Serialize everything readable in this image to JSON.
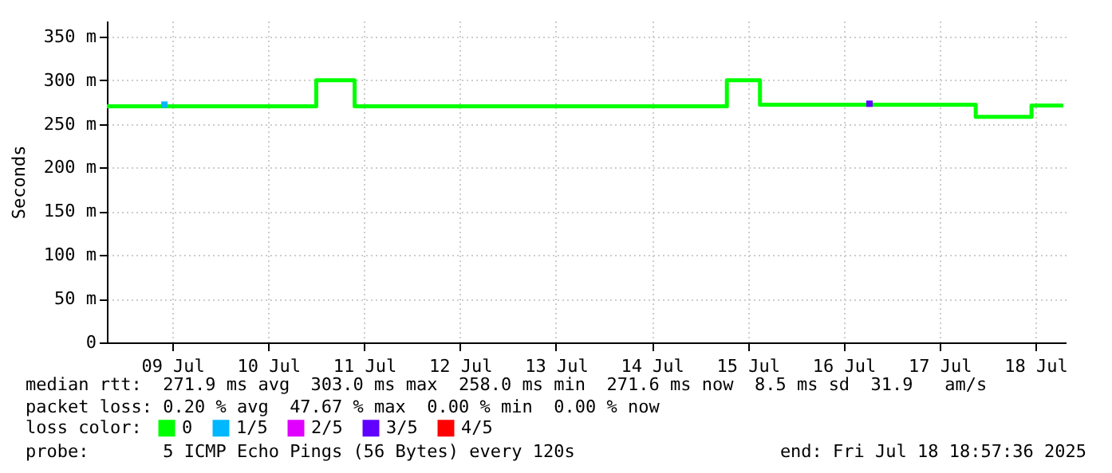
{
  "chart_data": {
    "type": "step",
    "ylabel": "Seconds",
    "legend_title": "loss color:",
    "legend": "bottom",
    "grid": true,
    "xlim": [
      "2025-07-08T19:36",
      "2025-07-18T19:36"
    ],
    "xticks": [
      {
        "value": "2025-07-09T12:00",
        "label": "09 Jul"
      },
      {
        "value": "2025-07-10T12:00",
        "label": "10 Jul"
      },
      {
        "value": "2025-07-11T12:00",
        "label": "11 Jul"
      },
      {
        "value": "2025-07-12T12:00",
        "label": "12 Jul"
      },
      {
        "value": "2025-07-13T12:00",
        "label": "13 Jul"
      },
      {
        "value": "2025-07-14T12:00",
        "label": "14 Jul"
      },
      {
        "value": "2025-07-15T12:00",
        "label": "15 Jul"
      },
      {
        "value": "2025-07-16T12:00",
        "label": "16 Jul"
      },
      {
        "value": "2025-07-17T12:00",
        "label": "17 Jul"
      },
      {
        "value": "2025-07-18T12:00",
        "label": "18 Jul"
      }
    ],
    "ylim": [
      0,
      368
    ],
    "yticks": [
      0,
      {
        "value": 50,
        "label": "50 m"
      },
      {
        "value": 100,
        "label": "100 m"
      },
      {
        "value": 150,
        "label": "150 m"
      },
      {
        "value": 200,
        "label": "200 m"
      },
      {
        "value": 250,
        "label": "250 m"
      },
      {
        "value": 300,
        "label": "300 m"
      },
      {
        "value": 350,
        "label": "350 m"
      }
    ],
    "series": [
      {
        "name": "0",
        "color": "#00ff00",
        "x": [
          "2025-07-08T19:36",
          "2025-07-11T00:00",
          "2025-07-11T09:36",
          "2025-07-15T06:47",
          "2025-07-15T15:04",
          "2025-07-17T21:04",
          "2025-07-18T11:02",
          "2025-07-18T18:57"
        ],
        "values": [
          270,
          300,
          270,
          300,
          272,
          258,
          271,
          271
        ]
      },
      {
        "name": "1/5",
        "color": "#00b8ff",
        "type": "scatter",
        "x": [
          "2025-07-09T10:00"
        ],
        "values": [
          272
        ]
      },
      {
        "name": "2/5",
        "color": "#e000ff",
        "type": "scatter"
      },
      {
        "name": "3/5",
        "color": "#6000ff",
        "type": "scatter",
        "x": [
          "2025-07-16T18:29"
        ],
        "values": [
          273
        ]
      },
      {
        "name": "4/5",
        "color": "#ff0000",
        "type": "scatter"
      }
    ],
    "annotations": [
      "median rtt:  271.9 ms avg  303.0 ms max  258.0 ms min  271.6 ms now  8.5 ms sd  31.9   am/s",
      "packet loss: 0.20 % avg  47.67 % max  0.00 % min  0.00 % now",
      "probe:       5 ICMP Echo Pings (56 Bytes) every 120s",
      "end: Fri Jul 18 18:57:36 2025"
    ]
  }
}
